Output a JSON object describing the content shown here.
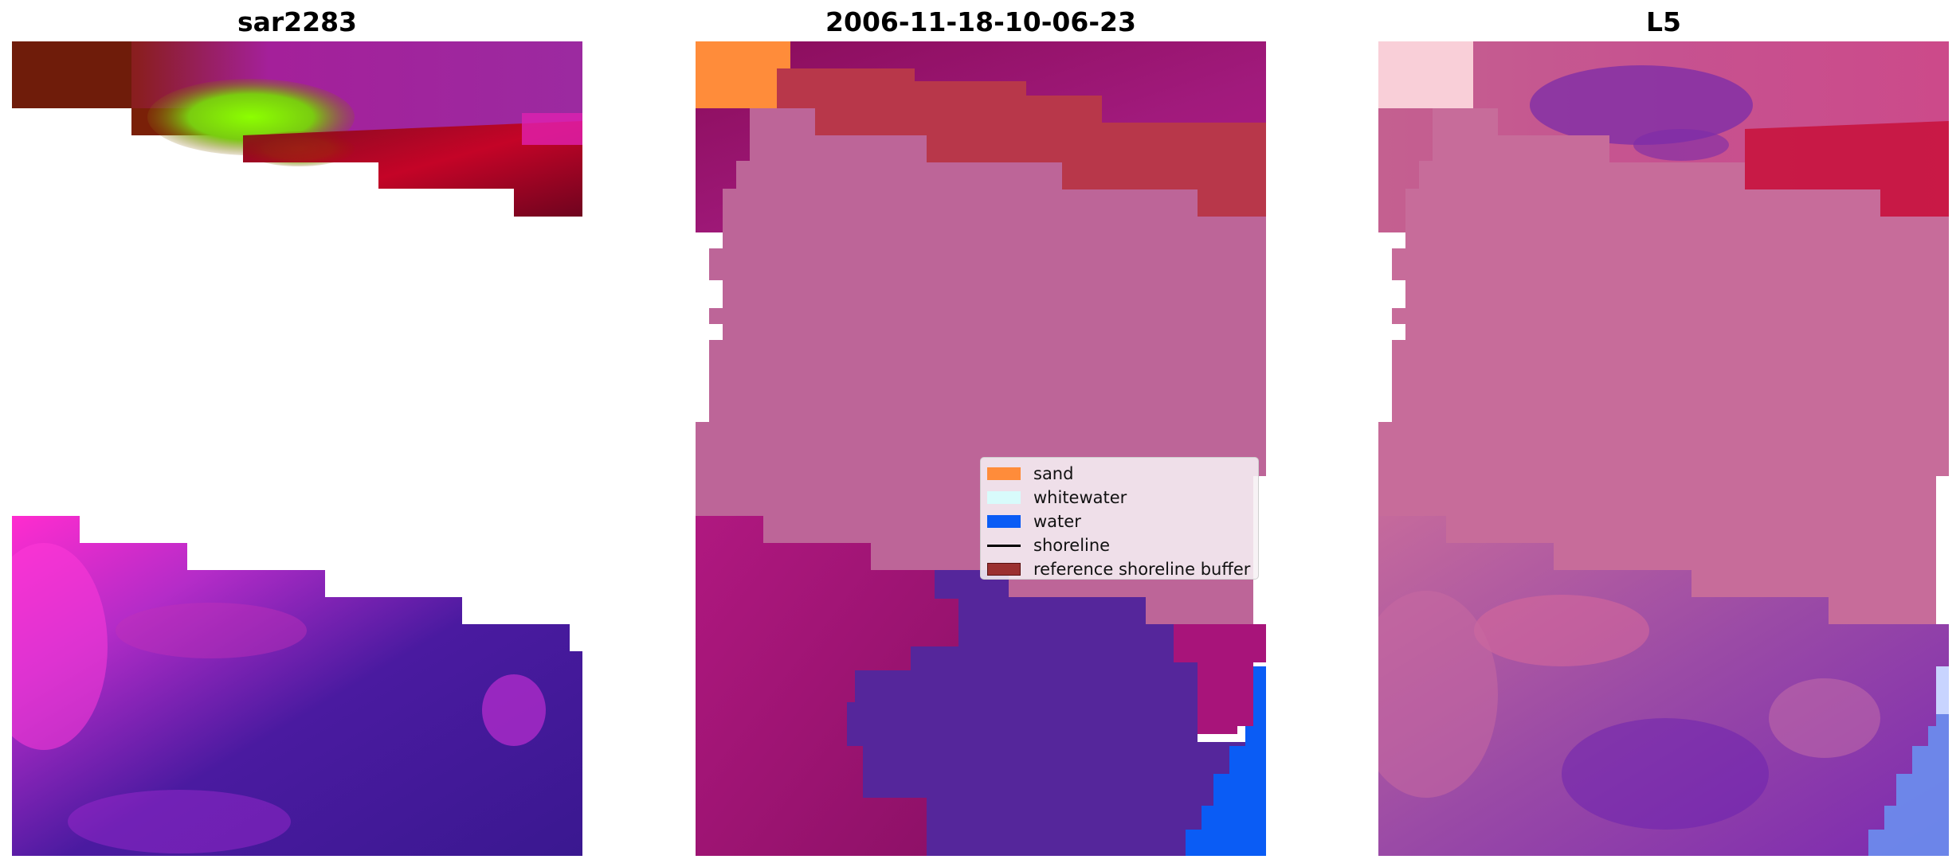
{
  "titles": {
    "left": "sar2283",
    "center": "2006-11-18-10-06-23",
    "right": "L5"
  },
  "legend": {
    "items": [
      {
        "label": "sand",
        "color": "#ff8c3a",
        "kind": "patch"
      },
      {
        "label": "whitewater",
        "color": "#d8fbfb",
        "kind": "patch"
      },
      {
        "label": "water",
        "color": "#0a5cf5",
        "kind": "patch"
      },
      {
        "label": "shoreline",
        "color": "#000000",
        "kind": "line"
      },
      {
        "label": "reference shoreline buffer",
        "color": "#9b3030",
        "kind": "patch"
      }
    ]
  },
  "colors": {
    "nodata": "#ffffff",
    "sar_magenta": "#a0209a",
    "sar_hot_pink": "#ff2ccf",
    "sar_brown": "#6e1a0a",
    "sar_lime": "#86ff00",
    "sar_crimson": "#c8001a",
    "sar_indigo": "#3a1890",
    "class_overlay_pink": "#bd6598",
    "class_violet": "#55269b",
    "class_buffer_red": "#b8374a",
    "l5_pink": "#c76c9a",
    "l5_pale": "#f9cfd8",
    "l5_purple": "#7b2ca8",
    "l5_red": "#c8103a",
    "l5_blue": "#6a8ff0"
  }
}
